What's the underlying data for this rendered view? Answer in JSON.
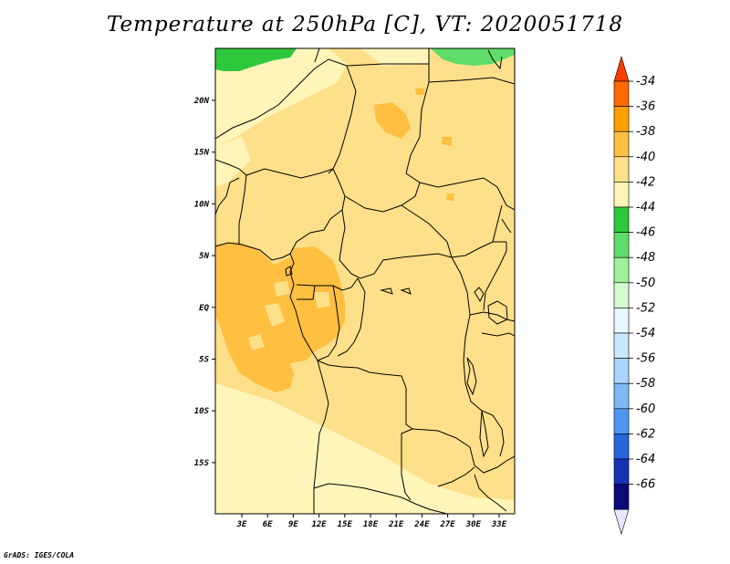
{
  "title": "Temperature at 250hPa [C], VT: 2020051718",
  "credit": "GrADS: IGES/COLA",
  "map": {
    "lon_ticks": [
      "3E",
      "6E",
      "9E",
      "12E",
      "15E",
      "18E",
      "21E",
      "24E",
      "27E",
      "30E",
      "33E"
    ],
    "lat_ticks": [
      "20N",
      "15N",
      "10N",
      "5N",
      "EQ",
      "5S",
      "10S",
      "15S"
    ]
  },
  "colorbar": {
    "labels": [
      "-34",
      "-36",
      "-38",
      "-40",
      "-42",
      "-44",
      "-46",
      "-48",
      "-50",
      "-52",
      "-54",
      "-56",
      "-58",
      "-60",
      "-62",
      "-64",
      "-66"
    ],
    "colors": [
      "#ff3c00",
      "#ff6a00",
      "#ffa000",
      "#ffbf40",
      "#ffe08a",
      "#fff5b8",
      "#2dc83c",
      "#5fdc6a",
      "#9ff09a",
      "#d4fbd0",
      "#e8f8ff",
      "#c8e8ff",
      "#a8d4ff",
      "#7dbaf5",
      "#5096f0",
      "#2864dc",
      "#1432b4",
      "#0a0a78",
      "#e6e6ff"
    ]
  }
}
